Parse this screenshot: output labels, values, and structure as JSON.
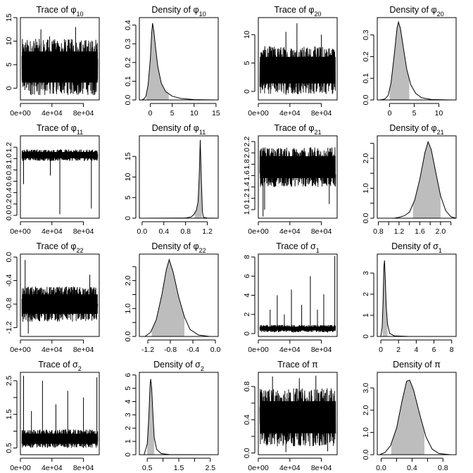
{
  "chart_data": [
    {
      "panel": "trace-phi10",
      "type": "line",
      "title": "Trace of φ10",
      "title_main": "Trace of φ",
      "title_sub": "10",
      "xlim": [
        0,
        100000
      ],
      "ylim": [
        -2.5,
        15
      ],
      "xticks": [
        0,
        40000,
        80000
      ],
      "xtick_labels": [
        "0e+00",
        "4e+04",
        "8e+04"
      ],
      "yticks": [
        0,
        5,
        10,
        15
      ],
      "ytick_labels": [
        "0",
        "5",
        "10",
        "15"
      ],
      "band": {
        "lower": -1.5,
        "upper": 10.5
      },
      "spikes": [
        {
          "x": 26000,
          "y": 12.5
        },
        {
          "x": 37000,
          "y": 11
        },
        {
          "x": 70000,
          "y": 13
        }
      ]
    },
    {
      "panel": "density-phi10",
      "type": "area",
      "title": "Density of φ10",
      "title_main": "Density of φ",
      "title_sub": "10",
      "xlim": [
        -2.5,
        15.5
      ],
      "ylim": [
        0,
        0.44
      ],
      "xticks": [
        0,
        5,
        10,
        15
      ],
      "xtick_labels": [
        "0",
        "5",
        "10",
        "15"
      ],
      "yticks": [
        0,
        0.1,
        0.2,
        0.3,
        0.4
      ],
      "ytick_labels": [
        "0.0",
        "0.1",
        "0.2",
        "0.3",
        "0.4"
      ],
      "shade": [
        -0.9,
        4.2
      ],
      "curve": [
        [
          -2,
          0
        ],
        [
          -1.5,
          0.004
        ],
        [
          -1,
          0.02
        ],
        [
          -0.5,
          0.08
        ],
        [
          0,
          0.22
        ],
        [
          0.3,
          0.35
        ],
        [
          0.5,
          0.41
        ],
        [
          0.8,
          0.37
        ],
        [
          1.2,
          0.28
        ],
        [
          1.7,
          0.18
        ],
        [
          2.5,
          0.09
        ],
        [
          3.5,
          0.045
        ],
        [
          5,
          0.02
        ],
        [
          7,
          0.008
        ],
        [
          10,
          0.002
        ],
        [
          15,
          0
        ]
      ]
    },
    {
      "panel": "trace-phi20",
      "type": "line",
      "title": "Trace of φ20",
      "title_main": "Trace of φ",
      "title_sub": "20",
      "xlim": [
        0,
        100000
      ],
      "ylim": [
        -1.5,
        13
      ],
      "xticks": [
        0,
        40000,
        80000
      ],
      "xtick_labels": [
        "0e+00",
        "4e+04",
        "8e+04"
      ],
      "yticks": [
        0,
        5,
        10
      ],
      "ytick_labels": [
        "0",
        "5",
        "10"
      ],
      "band": {
        "lower": -0.5,
        "upper": 8
      },
      "spikes": [
        {
          "x": 35000,
          "y": 10.5
        },
        {
          "x": 49000,
          "y": 12
        },
        {
          "x": 80000,
          "y": 10
        }
      ]
    },
    {
      "panel": "density-phi20",
      "type": "area",
      "title": "Density of φ20",
      "title_main": "Density of φ",
      "title_sub": "20",
      "xlim": [
        -2.5,
        13.5
      ],
      "ylim": [
        0,
        0.38
      ],
      "xticks": [
        0,
        5,
        10
      ],
      "xtick_labels": [
        "0",
        "5",
        "10"
      ],
      "yticks": [
        0,
        0.1,
        0.2,
        0.3
      ],
      "ytick_labels": [
        "0.0",
        "0.1",
        "0.2",
        "0.3"
      ],
      "shade": [
        0,
        4
      ],
      "curve": [
        [
          -2,
          0
        ],
        [
          -1,
          0.004
        ],
        [
          -0.3,
          0.02
        ],
        [
          0.3,
          0.08
        ],
        [
          1,
          0.22
        ],
        [
          1.5,
          0.33
        ],
        [
          1.8,
          0.36
        ],
        [
          2.2,
          0.33
        ],
        [
          2.8,
          0.24
        ],
        [
          3.5,
          0.14
        ],
        [
          4.3,
          0.07
        ],
        [
          5.3,
          0.03
        ],
        [
          6.5,
          0.01
        ],
        [
          8.5,
          0.002
        ],
        [
          13,
          0
        ]
      ]
    },
    {
      "panel": "trace-phi11",
      "type": "line",
      "title": "Trace of φ11",
      "title_main": "Trace of φ",
      "title_sub": "11",
      "xlim": [
        0,
        100000
      ],
      "ylim": [
        -0.05,
        1.4
      ],
      "xticks": [
        0,
        40000,
        80000
      ],
      "xtick_labels": [
        "0e+00",
        "4e+04",
        "8e+04"
      ],
      "yticks": [
        0,
        0.2,
        0.4,
        0.6,
        0.8,
        1.0,
        1.2
      ],
      "ytick_labels": [
        "0.0",
        "0.2",
        "0.4",
        "0.6",
        "0.8",
        "1.0",
        "1.2"
      ],
      "band": {
        "lower": 0.96,
        "upper": 1.16
      },
      "spikes": [
        {
          "x": 50000,
          "y": 0.02
        },
        {
          "x": 90000,
          "y": 0.12
        },
        {
          "x": 4000,
          "y": 0.55
        },
        {
          "x": 38000,
          "y": 0.7
        }
      ]
    },
    {
      "panel": "density-phi11",
      "type": "area",
      "title": "Density of φ11",
      "title_main": "Density of φ",
      "title_sub": "11",
      "xlim": [
        -0.05,
        1.4
      ],
      "ylim": [
        0,
        20
      ],
      "xticks": [
        0,
        0.4,
        0.8,
        1.2
      ],
      "xtick_labels": [
        "0.0",
        "0.4",
        "0.8",
        "1.2"
      ],
      "yticks": [
        0,
        5,
        10,
        15
      ],
      "ytick_labels": [
        "0",
        "5",
        "10",
        "15"
      ],
      "shade": [
        0.97,
        1.1
      ],
      "curve": [
        [
          0,
          0
        ],
        [
          0.8,
          0.05
        ],
        [
          0.9,
          0.3
        ],
        [
          0.95,
          0.8
        ],
        [
          1.0,
          2
        ],
        [
          1.03,
          4
        ],
        [
          1.05,
          10
        ],
        [
          1.07,
          19
        ],
        [
          1.09,
          9
        ],
        [
          1.11,
          1.5
        ],
        [
          1.13,
          0.2
        ],
        [
          1.2,
          0.05
        ],
        [
          1.4,
          0
        ]
      ]
    },
    {
      "panel": "trace-phi21",
      "type": "line",
      "title": "Trace of φ21",
      "title_main": "Trace of φ",
      "title_sub": "21",
      "xlim": [
        0,
        100000
      ],
      "ylim": [
        0.85,
        2.3
      ],
      "xticks": [
        0,
        40000,
        80000
      ],
      "xtick_labels": [
        "0e+00",
        "4e+04",
        "8e+04"
      ],
      "yticks": [
        1.0,
        1.2,
        1.4,
        1.6,
        1.8,
        2.0,
        2.2
      ],
      "ytick_labels": [
        "1.0",
        "1.2",
        "1.4",
        "1.6",
        "1.8",
        "2.0",
        "2.2"
      ],
      "band": {
        "lower": 1.4,
        "upper": 2.1
      },
      "spikes": [
        {
          "x": 6000,
          "y": 0.88
        },
        {
          "x": 90000,
          "y": 1.1
        },
        {
          "x": 8000,
          "y": 1.0
        }
      ]
    },
    {
      "panel": "density-phi21",
      "type": "area",
      "title": "Density of φ21",
      "title_main": "Density of φ",
      "title_sub": "21",
      "xlim": [
        0.78,
        2.3
      ],
      "ylim": [
        0,
        2.75
      ],
      "xticks": [
        0.8,
        1.0,
        1.2,
        1.4,
        1.6,
        1.8,
        2.0,
        2.2
      ],
      "xtick_labels": [
        "0.8",
        "",
        "1.2",
        "",
        "1.6",
        "",
        "2.0",
        ""
      ],
      "yticks": [
        0,
        0.5,
        1.0,
        1.5,
        2.0,
        2.5
      ],
      "ytick_labels": [
        "0.0",
        "",
        "1.0",
        "",
        "2.0",
        ""
      ],
      "shade": [
        1.47,
        2.0
      ],
      "curve": [
        [
          1.1,
          0
        ],
        [
          1.2,
          0.03
        ],
        [
          1.3,
          0.08
        ],
        [
          1.4,
          0.2
        ],
        [
          1.5,
          0.6
        ],
        [
          1.6,
          1.3
        ],
        [
          1.7,
          2.2
        ],
        [
          1.76,
          2.55
        ],
        [
          1.82,
          2.3
        ],
        [
          1.9,
          1.6
        ],
        [
          2.0,
          0.75
        ],
        [
          2.1,
          0.25
        ],
        [
          2.2,
          0.05
        ],
        [
          2.3,
          0
        ]
      ]
    },
    {
      "panel": "trace-phi22",
      "type": "line",
      "title": "Trace of φ22",
      "title_main": "Trace of φ",
      "title_sub": "22",
      "xlim": [
        0,
        100000
      ],
      "ylim": [
        -1.35,
        0.05
      ],
      "xticks": [
        0,
        40000,
        80000
      ],
      "xtick_labels": [
        "0e+00",
        "4e+04",
        "8e+04"
      ],
      "yticks": [
        -1.2,
        -0.8,
        -0.4,
        0
      ],
      "ytick_labels": [
        "-1.2",
        "-0.8",
        "-0.4",
        "0.0"
      ],
      "band": {
        "lower": -1.1,
        "upper": -0.5
      },
      "spikes": [
        {
          "x": 6000,
          "y": -0.05
        },
        {
          "x": 10000,
          "y": -1.3
        },
        {
          "x": 88000,
          "y": -0.3
        }
      ]
    },
    {
      "panel": "density-phi22",
      "type": "area",
      "title": "Density of φ22",
      "title_main": "Density of φ",
      "title_sub": "22",
      "xlim": [
        -1.35,
        0.05
      ],
      "ylim": [
        0,
        2.95
      ],
      "xticks": [
        -1.2,
        -0.8,
        -0.4,
        0
      ],
      "xtick_labels": [
        "-1.2",
        "-0.8",
        "-0.4",
        "0.0"
      ],
      "yticks": [
        0,
        0.5,
        1.0,
        1.5,
        2.0,
        2.5
      ],
      "ytick_labels": [
        "0.0",
        "",
        "1.0",
        "",
        "2.0",
        ""
      ],
      "shade": [
        -1.13,
        -0.55
      ],
      "curve": [
        [
          -1.25,
          0
        ],
        [
          -1.15,
          0.15
        ],
        [
          -1.05,
          0.6
        ],
        [
          -0.95,
          1.5
        ],
        [
          -0.87,
          2.4
        ],
        [
          -0.82,
          2.75
        ],
        [
          -0.75,
          2.3
        ],
        [
          -0.65,
          1.4
        ],
        [
          -0.55,
          0.7
        ],
        [
          -0.45,
          0.25
        ],
        [
          -0.3,
          0.05
        ],
        [
          -0.1,
          0
        ],
        [
          0,
          0
        ]
      ]
    },
    {
      "panel": "trace-sigma1",
      "type": "line",
      "title": "Trace of σ1",
      "title_main": "Trace of σ",
      "title_sub": "1",
      "xlim": [
        0,
        100000
      ],
      "ylim": [
        -0.3,
        8.3
      ],
      "xticks": [
        0,
        40000,
        80000
      ],
      "xtick_labels": [
        "0e+00",
        "4e+04",
        "8e+04"
      ],
      "yticks": [
        0,
        2,
        4,
        6,
        8
      ],
      "ytick_labels": [
        "0",
        "2",
        "4",
        "6",
        "8"
      ],
      "band": {
        "lower": 0.15,
        "upper": 0.9
      },
      "spikes": [
        {
          "x": 97000,
          "y": 8.1
        },
        {
          "x": 66000,
          "y": 6
        },
        {
          "x": 42000,
          "y": 4.6
        },
        {
          "x": 24000,
          "y": 4
        },
        {
          "x": 83000,
          "y": 4.1
        },
        {
          "x": 15000,
          "y": 2.5
        },
        {
          "x": 33000,
          "y": 2
        },
        {
          "x": 55000,
          "y": 3
        },
        {
          "x": 75000,
          "y": 2.5
        }
      ]
    },
    {
      "panel": "density-sigma1",
      "type": "area",
      "title": "Density of σ1",
      "title_main": "Density of σ",
      "title_sub": "1",
      "xlim": [
        -0.4,
        8.5
      ],
      "ylim": [
        0,
        3.9
      ],
      "xticks": [
        0,
        2,
        4,
        6,
        8
      ],
      "xtick_labels": [
        "0",
        "2",
        "4",
        "6",
        "8"
      ],
      "yticks": [
        0,
        1,
        2,
        3
      ],
      "ytick_labels": [
        "0",
        "1",
        "2",
        "3"
      ],
      "shade": [
        0.2,
        0.75
      ],
      "curve": [
        [
          0,
          0
        ],
        [
          0.15,
          0.4
        ],
        [
          0.25,
          1.6
        ],
        [
          0.35,
          3.3
        ],
        [
          0.42,
          3.6
        ],
        [
          0.5,
          2.8
        ],
        [
          0.6,
          1.5
        ],
        [
          0.75,
          0.6
        ],
        [
          1.0,
          0.15
        ],
        [
          1.5,
          0.03
        ],
        [
          3,
          0.005
        ],
        [
          8,
          0
        ]
      ]
    },
    {
      "panel": "trace-sigma2",
      "type": "line",
      "title": "Trace of σ2",
      "title_main": "Trace of σ",
      "title_sub": "2",
      "xlim": [
        0,
        100000
      ],
      "ylim": [
        0.3,
        2.75
      ],
      "xticks": [
        0,
        40000,
        80000
      ],
      "xtick_labels": [
        "0e+00",
        "4e+04",
        "8e+04"
      ],
      "yticks": [
        0.5,
        1.0,
        1.5,
        2.0,
        2.5
      ],
      "ytick_labels": [
        "0.5",
        "",
        "1.5",
        "",
        "2.5"
      ],
      "band": {
        "lower": 0.5,
        "upper": 1.05
      },
      "spikes": [
        {
          "x": 4000,
          "y": 2.65
        },
        {
          "x": 28000,
          "y": 2.5
        },
        {
          "x": 97000,
          "y": 2.6
        },
        {
          "x": 60000,
          "y": 2.2
        },
        {
          "x": 45000,
          "y": 1.8
        },
        {
          "x": 80000,
          "y": 2.0
        },
        {
          "x": 14000,
          "y": 1.6
        }
      ]
    },
    {
      "panel": "density-sigma2",
      "type": "area",
      "title": "Density of σ2",
      "title_main": "Density of σ",
      "title_sub": "2",
      "xlim": [
        0.25,
        2.75
      ],
      "ylim": [
        0,
        6.2
      ],
      "xticks": [
        0.5,
        1.0,
        1.5,
        2.0,
        2.5
      ],
      "xtick_labels": [
        "0.5",
        "",
        "1.5",
        "",
        "2.5"
      ],
      "yticks": [
        0,
        1,
        2,
        3,
        4,
        5,
        6
      ],
      "ytick_labels": [
        "0",
        "1",
        "2",
        "3",
        "4",
        "5",
        "6"
      ],
      "shade": [
        0.5,
        0.72
      ],
      "curve": [
        [
          0.4,
          0
        ],
        [
          0.5,
          0.8
        ],
        [
          0.55,
          2.8
        ],
        [
          0.59,
          5.2
        ],
        [
          0.61,
          5.7
        ],
        [
          0.64,
          5.0
        ],
        [
          0.68,
          3.0
        ],
        [
          0.72,
          1.3
        ],
        [
          0.8,
          0.4
        ],
        [
          0.95,
          0.08
        ],
        [
          1.2,
          0.01
        ],
        [
          2.7,
          0
        ]
      ]
    },
    {
      "panel": "trace-pi",
      "type": "line",
      "title": "Trace of π",
      "title_main": "Trace of π",
      "title_sub": "",
      "xlim": [
        0,
        100000
      ],
      "ylim": [
        -0.02,
        0.97
      ],
      "xticks": [
        0,
        40000,
        80000
      ],
      "xtick_labels": [
        "0e+00",
        "4e+04",
        "8e+04"
      ],
      "yticks": [
        0,
        0.2,
        0.4,
        0.6,
        0.8
      ],
      "ytick_labels": [
        "0.0",
        "",
        "0.4",
        "",
        "0.8"
      ],
      "band": {
        "lower": 0.08,
        "upper": 0.78
      },
      "spikes": [
        {
          "x": 18000,
          "y": 0.92
        },
        {
          "x": 52000,
          "y": 0.9
        },
        {
          "x": 73000,
          "y": 0.93
        },
        {
          "x": 35000,
          "y": 0.01
        },
        {
          "x": 88000,
          "y": 0.02
        }
      ]
    },
    {
      "panel": "density-pi",
      "type": "area",
      "title": "Density of π",
      "title_main": "Density of π",
      "title_sub": "",
      "xlim": [
        -0.05,
        0.97
      ],
      "ylim": [
        0,
        3.7
      ],
      "xticks": [
        0,
        0.2,
        0.4,
        0.6,
        0.8
      ],
      "xtick_labels": [
        "0.0",
        "",
        "0.4",
        "",
        "0.8"
      ],
      "yticks": [
        0,
        1,
        2,
        3
      ],
      "ytick_labels": [
        "0.0",
        "1.0",
        "2.0",
        "3.0"
      ],
      "shade": [
        0.13,
        0.56
      ],
      "curve": [
        [
          -0.02,
          0
        ],
        [
          0.05,
          0.1
        ],
        [
          0.12,
          0.4
        ],
        [
          0.2,
          1.2
        ],
        [
          0.27,
          2.4
        ],
        [
          0.33,
          3.3
        ],
        [
          0.37,
          3.35
        ],
        [
          0.42,
          2.9
        ],
        [
          0.5,
          1.8
        ],
        [
          0.58,
          0.8
        ],
        [
          0.66,
          0.25
        ],
        [
          0.75,
          0.05
        ],
        [
          0.9,
          0
        ]
      ]
    }
  ]
}
